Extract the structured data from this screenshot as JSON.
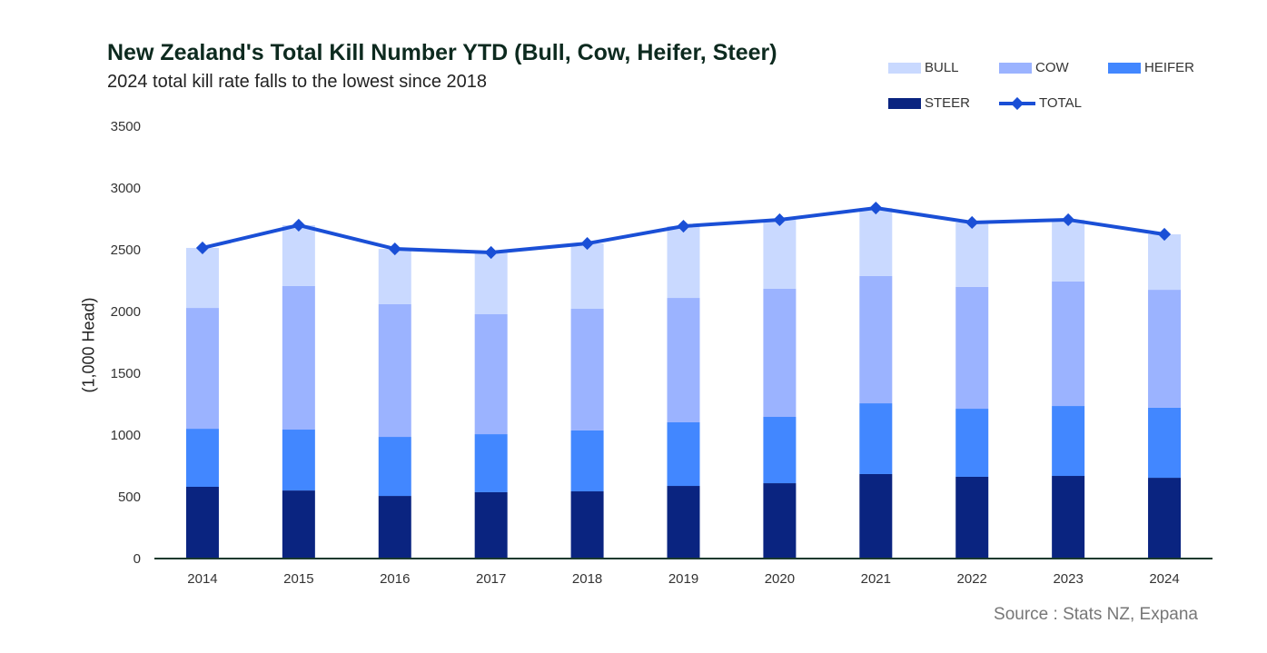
{
  "chart_data": {
    "type": "bar",
    "stacked": true,
    "title": "New Zealand's Total Kill Number YTD (Bull, Cow, Heifer, Steer)",
    "subtitle": "2024 total kill rate falls to the lowest since 2018",
    "xlabel": "",
    "ylabel": "(1,000 Head)",
    "ylim": [
      0,
      3500
    ],
    "yticks": [
      "0",
      "500",
      "1000",
      "1500",
      "2000",
      "2500",
      "3000",
      "3500"
    ],
    "categories": [
      "2014",
      "2015",
      "2016",
      "2017",
      "2018",
      "2019",
      "2020",
      "2021",
      "2022",
      "2023",
      "2024"
    ],
    "series": [
      {
        "name": "STEER",
        "type": "bar",
        "color": "#0a2480",
        "values": [
          581,
          551,
          507,
          537,
          544,
          588,
          610,
          684,
          662,
          669,
          654
        ]
      },
      {
        "name": "HEIFER",
        "type": "bar",
        "color": "#4287ff",
        "values": [
          470,
          493,
          478,
          470,
          493,
          515,
          537,
          573,
          551,
          566,
          567
        ]
      },
      {
        "name": "COW",
        "type": "bar",
        "color": "#9bb3ff",
        "values": [
          978,
          1162,
          1074,
          971,
          985,
          1007,
          1037,
          1030,
          986,
          1008,
          955
        ]
      },
      {
        "name": "BULL",
        "type": "bar",
        "color": "#c9d9ff",
        "values": [
          486,
          493,
          448,
          500,
          529,
          581,
          559,
          551,
          522,
          500,
          449
        ]
      },
      {
        "name": "TOTAL",
        "type": "line",
        "color": "#1a4fd6",
        "values": [
          2515,
          2699,
          2507,
          2478,
          2551,
          2691,
          2743,
          2838,
          2721,
          2743,
          2625
        ]
      }
    ],
    "legend_position": "top-right",
    "grid": false,
    "source": "Source : Stats NZ, Expana"
  }
}
